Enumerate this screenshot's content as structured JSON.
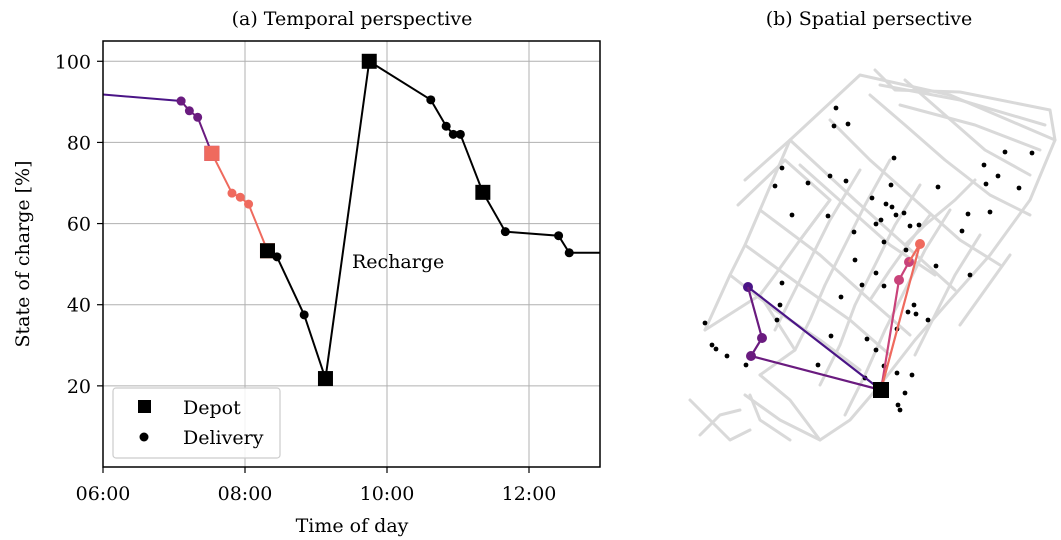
{
  "chart_data": [
    {
      "type": "line",
      "title": "(a) Temporal perspective",
      "xlabel": "Time of day",
      "ylabel": "State of charge [%]",
      "x_range": [
        "06:00",
        "13:00"
      ],
      "ylim": [
        0,
        105
      ],
      "x_ticks": [
        "06:00",
        "08:00",
        "10:00",
        "12:00"
      ],
      "y_ticks": [
        20,
        40,
        60,
        80,
        100
      ],
      "grid": true,
      "legend_position": "lower-left",
      "legend": [
        {
          "label": "Depot",
          "marker": "square"
        },
        {
          "label": "Delivery",
          "marker": "circle"
        }
      ],
      "annotation": "Recharge",
      "series": [
        {
          "color": "#4a1486",
          "points": [
            {
              "x": "06:00",
              "y": 91.8,
              "kind": "start"
            },
            {
              "x": "07:06",
              "y": 90.2,
              "kind": "delivery"
            }
          ]
        },
        {
          "color": "#6a1b7f",
          "points": [
            {
              "x": "07:06",
              "y": 90.2,
              "kind": "delivery"
            },
            {
              "x": "07:13",
              "y": 87.8,
              "kind": "delivery"
            },
            {
              "x": "07:20",
              "y": 86.2,
              "kind": "delivery"
            },
            {
              "x": "07:32",
              "y": 77.3,
              "kind": "depot"
            }
          ]
        },
        {
          "color": "#c9437a",
          "points": [
            {
              "x": "07:32",
              "y": 77.3,
              "kind": "depot"
            }
          ]
        },
        {
          "color": "#ef6a5e",
          "points": [
            {
              "x": "07:32",
              "y": 77.3,
              "kind": "depot"
            },
            {
              "x": "07:49",
              "y": 67.5,
              "kind": "delivery"
            },
            {
              "x": "07:56",
              "y": 66.5,
              "kind": "delivery"
            },
            {
              "x": "08:03",
              "y": 64.8,
              "kind": "delivery"
            },
            {
              "x": "08:19",
              "y": 53.3,
              "kind": "depot"
            }
          ]
        },
        {
          "color": "#f9a57a",
          "points": [
            {
              "x": "08:19",
              "y": 53.3,
              "kind": "depot"
            }
          ]
        },
        {
          "color": "#000000",
          "points": [
            {
              "x": "08:19",
              "y": 53.3,
              "kind": "depot"
            },
            {
              "x": "08:27",
              "y": 51.8,
              "kind": "delivery"
            },
            {
              "x": "08:50",
              "y": 37.5,
              "kind": "delivery"
            },
            {
              "x": "09:08",
              "y": 21.8,
              "kind": "depot"
            },
            {
              "x": "09:45",
              "y": 100.0,
              "kind": "depot"
            },
            {
              "x": "10:37",
              "y": 90.5,
              "kind": "delivery"
            },
            {
              "x": "10:50",
              "y": 84.0,
              "kind": "delivery"
            },
            {
              "x": "10:56",
              "y": 82.0,
              "kind": "delivery"
            },
            {
              "x": "11:02",
              "y": 82.0,
              "kind": "delivery"
            },
            {
              "x": "11:21",
              "y": 67.7,
              "kind": "depot"
            },
            {
              "x": "11:40",
              "y": 58.0,
              "kind": "delivery"
            },
            {
              "x": "12:25",
              "y": 57.0,
              "kind": "delivery"
            },
            {
              "x": "12:34",
              "y": 52.8,
              "kind": "delivery"
            },
            {
              "x": "13:00",
              "y": 52.8,
              "kind": "end"
            }
          ]
        }
      ]
    },
    {
      "type": "map",
      "title": "(b) Spatial persective",
      "depot_color": "#000000",
      "route_colors": [
        "#4a1486",
        "#6a1b7f",
        "#c9437a",
        "#ef6a5e"
      ],
      "delivery_dots": "black"
    }
  ]
}
